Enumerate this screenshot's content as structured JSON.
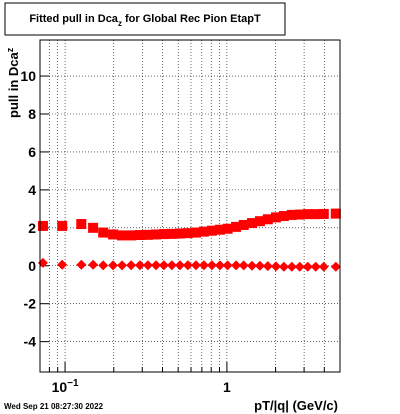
{
  "chart_data": {
    "type": "scatter",
    "title": "Fitted pull in Dca",
    "title_subscript": "z",
    "title_rest": " for Global Rec Pion EtapT",
    "y_label": "pull in Dca",
    "y_label_subscript": "z",
    "x_label": "pT/|q| (GeV/c)",
    "timestamp": "Wed Sep 21 08:27:30 2022",
    "x_log": true,
    "grid": true,
    "xlim": [
      0.07,
      5
    ],
    "ylim": [
      -5.6,
      11.9
    ],
    "xticks": [
      {
        "value": 0.1,
        "label": "10",
        "exponent": "−1"
      },
      1
    ],
    "xminorticks": [
      0.08,
      0.09,
      0.2,
      0.3,
      0.4,
      0.5,
      0.6,
      0.7,
      0.8,
      0.9,
      2,
      3,
      4
    ],
    "yticks": [
      -4,
      -2,
      0,
      2,
      4,
      6,
      8,
      10
    ],
    "x": [
      0.073,
      0.096,
      0.126,
      0.149,
      0.172,
      0.198,
      0.225,
      0.256,
      0.29,
      0.325,
      0.365,
      0.408,
      0.457,
      0.513,
      0.574,
      0.644,
      0.721,
      0.808,
      0.906,
      1.01,
      1.14,
      1.27,
      1.43,
      1.6,
      1.79,
      2.01,
      2.25,
      2.52,
      2.82,
      3.16,
      3.54,
      3.97,
      4.71
    ],
    "series": [
      {
        "marker": "square",
        "color": "#ff0000",
        "values": [
          2.1,
          2.1,
          2.2,
          2.0,
          1.75,
          1.65,
          1.6,
          1.6,
          1.62,
          1.63,
          1.65,
          1.67,
          1.68,
          1.7,
          1.72,
          1.75,
          1.8,
          1.85,
          1.9,
          1.95,
          2.05,
          2.15,
          2.25,
          2.35,
          2.45,
          2.55,
          2.62,
          2.68,
          2.7,
          2.72,
          2.72,
          2.73,
          2.75
        ]
      },
      {
        "marker": "diamond",
        "color": "#ff0000",
        "values": [
          0.15,
          0.05,
          0.05,
          0.05,
          0.02,
          0.02,
          0.02,
          0.03,
          0.03,
          0.03,
          0.03,
          0.03,
          0.03,
          0.03,
          0.03,
          0.03,
          0.03,
          0.03,
          0.02,
          0.02,
          0.02,
          0.02,
          0.0,
          0.0,
          -0.02,
          -0.03,
          -0.05,
          -0.05,
          -0.05,
          -0.05,
          -0.05,
          -0.05,
          -0.05
        ]
      }
    ]
  }
}
